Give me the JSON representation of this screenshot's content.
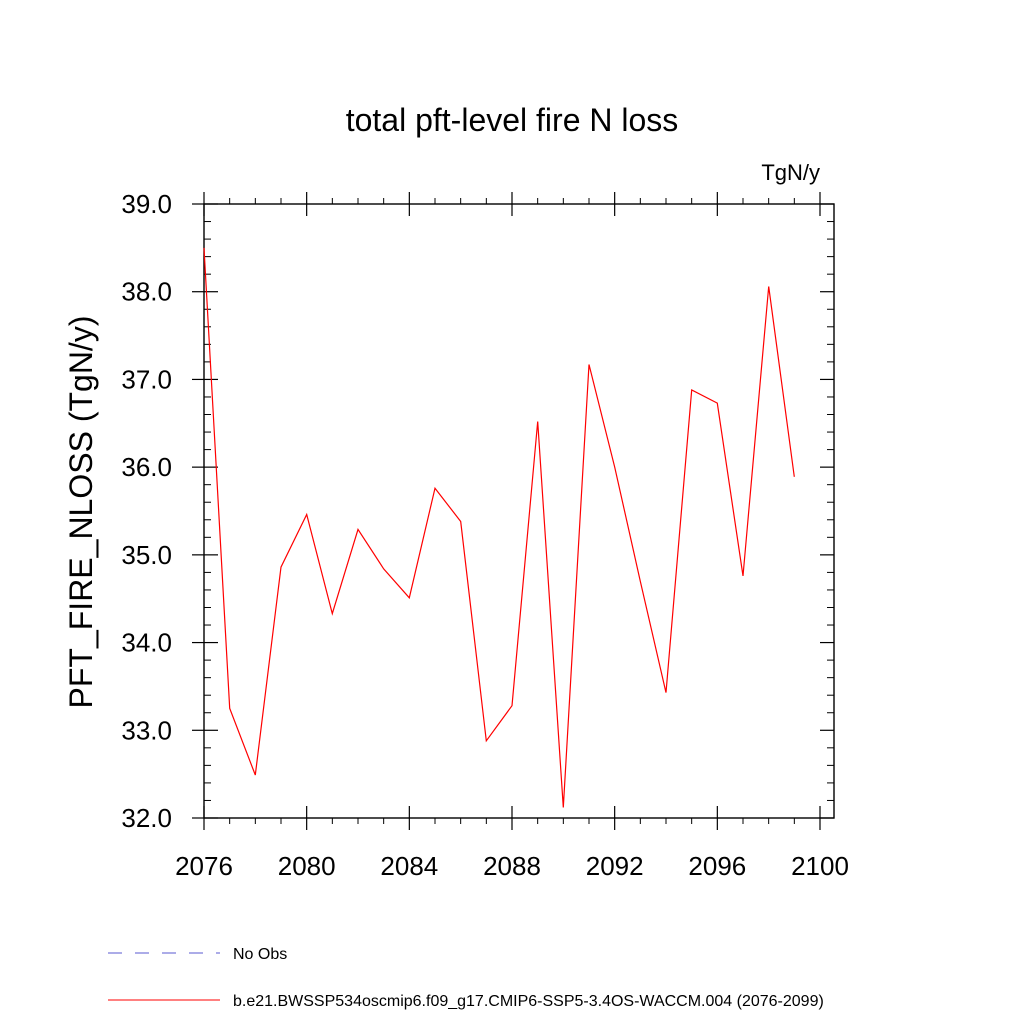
{
  "chart_data": {
    "type": "line",
    "title": "total pft-level fire N loss",
    "units_label": "TgN/y",
    "ylabel": "PFT_FIRE_NLOSS  (TgN/y)",
    "xlabel": "",
    "xlim": [
      2076,
      2100
    ],
    "ylim": [
      32.0,
      39.0
    ],
    "x_ticks": [
      "2076",
      "2080",
      "2084",
      "2088",
      "2092",
      "2096",
      "2100"
    ],
    "y_ticks": [
      "32.0",
      "33.0",
      "34.0",
      "35.0",
      "36.0",
      "37.0",
      "38.0",
      "39.0"
    ],
    "grid": false,
    "legend_position": "bottom",
    "x": [
      2076,
      2077,
      2078,
      2079,
      2080,
      2081,
      2082,
      2083,
      2084,
      2085,
      2086,
      2087,
      2088,
      2089,
      2090,
      2091,
      2092,
      2093,
      2094,
      2095,
      2096,
      2097,
      2098,
      2099
    ],
    "series": [
      {
        "name": "b.e21.BWSSP534oscmip6.f09_g17.CMIP6-SSP5-3.4OS-WACCM.004 (2076-2099)",
        "color": "#ff0000",
        "values": [
          38.5,
          33.25,
          32.49,
          34.86,
          35.46,
          34.33,
          35.29,
          34.84,
          34.51,
          35.76,
          35.38,
          32.88,
          33.28,
          36.52,
          32.12,
          37.17,
          36.0,
          34.7,
          33.43,
          36.88,
          36.73,
          34.76,
          38.06,
          35.89
        ]
      }
    ],
    "legend": [
      {
        "label": "No Obs",
        "color": "#5a5ad0",
        "dash": true
      },
      {
        "label": "b.e21.BWSSP534oscmip6.f09_g17.CMIP6-SSP5-3.4OS-WACCM.004 (2076-2099)",
        "color": "#ff0000",
        "dash": false
      }
    ]
  }
}
